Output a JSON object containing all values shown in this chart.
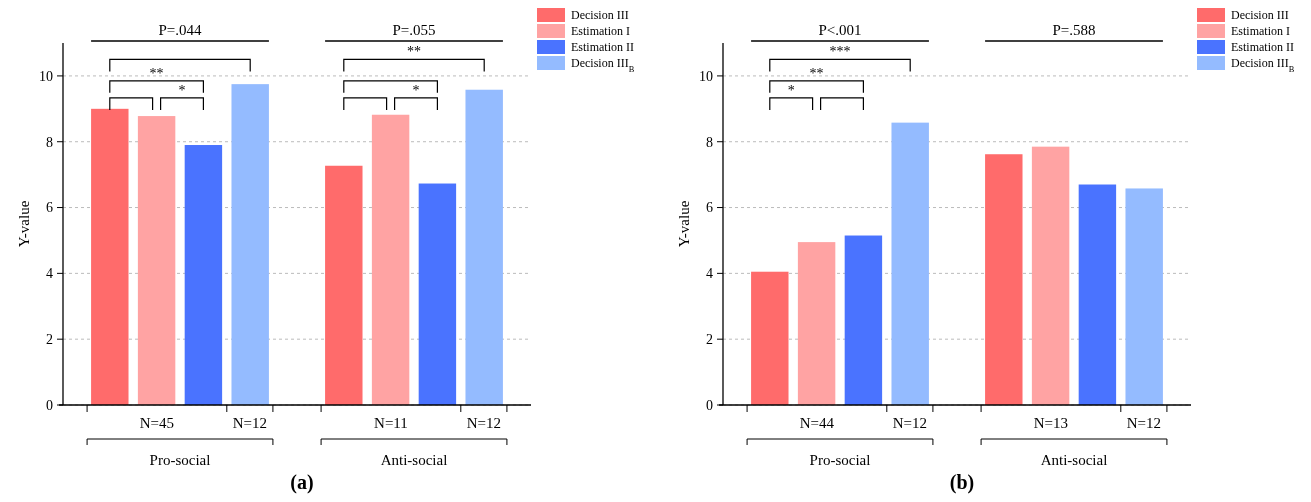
{
  "chart_data": [
    {
      "type": "bar",
      "title": "(a)",
      "ylabel": "Y-value",
      "categories": [
        "Pro-social",
        "Anti-social"
      ],
      "series": [
        {
          "name": "Decision III",
          "color": "#ff6b6b",
          "values": [
            9.0,
            7.27
          ]
        },
        {
          "name": "Estimation I",
          "color": "#ffa3a3",
          "values": [
            8.78,
            8.82
          ]
        },
        {
          "name": "Estimation II",
          "color": "#4a73ff",
          "values": [
            7.9,
            6.73
          ]
        },
        {
          "name": "Decision III$_{B}$",
          "color": "#94bbff",
          "values": [
            9.75,
            9.58
          ]
        }
      ],
      "ylim": [
        0,
        11
      ],
      "yticks": [
        0,
        2,
        4,
        6,
        8,
        10
      ],
      "grid": "y",
      "legend": "top right",
      "annotations": [
        "P=.044",
        "P=.055",
        "**",
        "*",
        "**",
        "*",
        "N=45",
        "N=12",
        "N=11",
        "N=12"
      ]
    },
    {
      "type": "bar",
      "title": "(b)",
      "ylabel": "Y-value",
      "categories": [
        "Pro-social",
        "Anti-social"
      ],
      "series": [
        {
          "name": "Decision III",
          "color": "#ff6b6b",
          "values": [
            4.05,
            7.62
          ]
        },
        {
          "name": "Estimation I",
          "color": "#ffa3a3",
          "values": [
            4.95,
            7.85
          ]
        },
        {
          "name": "Estimation II",
          "color": "#4a73ff",
          "values": [
            5.15,
            6.7
          ]
        },
        {
          "name": "Decision III$_{B}$",
          "color": "#94bbff",
          "values": [
            8.58,
            6.58
          ]
        }
      ],
      "ylim": [
        0,
        11
      ],
      "yticks": [
        0,
        2,
        4,
        6,
        8,
        10
      ],
      "grid": "y",
      "legend": "top right",
      "annotations": [
        "P<.001",
        "P=.588",
        "***",
        "**",
        "*",
        "N=44",
        "N=12",
        "N=13",
        "N=12"
      ]
    }
  ]
}
